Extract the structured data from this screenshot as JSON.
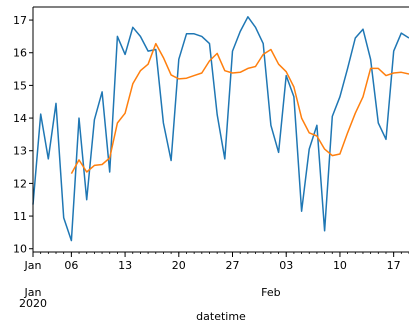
{
  "chart_data": {
    "type": "line",
    "title": "",
    "xlabel": "datetime",
    "ylabel": "",
    "xlim": [
      "2020-01-01",
      "2020-02-19"
    ],
    "ylim": [
      9.9,
      17.4
    ],
    "grid": false,
    "yticks": [
      10,
      11,
      12,
      13,
      14,
      15,
      16,
      17
    ],
    "xticks": [
      {
        "date": "2020-01-01",
        "label": "Jan"
      },
      {
        "date": "2020-01-06",
        "label": "06"
      },
      {
        "date": "2020-01-13",
        "label": "13"
      },
      {
        "date": "2020-01-20",
        "label": "20"
      },
      {
        "date": "2020-01-27",
        "label": "27"
      },
      {
        "date": "2020-02-03",
        "label": "03"
      },
      {
        "date": "2020-02-10",
        "label": "10"
      },
      {
        "date": "2020-02-17",
        "label": "17"
      }
    ],
    "major_labels": [
      {
        "date": "2020-01-01",
        "lines": [
          "Jan",
          "2020"
        ]
      },
      {
        "date": "2020-02-01",
        "lines": [
          "Feb"
        ]
      }
    ],
    "series": [
      {
        "color": "#1f77b4",
        "points": [
          [
            "2020-01-01",
            11.35
          ],
          [
            "2020-01-02",
            14.12
          ],
          [
            "2020-01-03",
            12.75
          ],
          [
            "2020-01-04",
            14.45
          ],
          [
            "2020-01-05",
            10.95
          ],
          [
            "2020-01-06",
            10.25
          ],
          [
            "2020-01-07",
            14.0
          ],
          [
            "2020-01-08",
            11.5
          ],
          [
            "2020-01-09",
            13.95
          ],
          [
            "2020-01-10",
            14.8
          ],
          [
            "2020-01-11",
            12.35
          ],
          [
            "2020-01-12",
            16.5
          ],
          [
            "2020-01-13",
            15.95
          ],
          [
            "2020-01-14",
            16.78
          ],
          [
            "2020-01-15",
            16.5
          ],
          [
            "2020-01-16",
            16.05
          ],
          [
            "2020-01-17",
            16.1
          ],
          [
            "2020-01-18",
            13.85
          ],
          [
            "2020-01-19",
            12.7
          ],
          [
            "2020-01-20",
            15.8
          ],
          [
            "2020-01-21",
            16.58
          ],
          [
            "2020-01-22",
            16.58
          ],
          [
            "2020-01-23",
            16.5
          ],
          [
            "2020-01-24",
            16.28
          ],
          [
            "2020-01-25",
            14.1
          ],
          [
            "2020-01-26",
            12.75
          ],
          [
            "2020-01-27",
            16.05
          ],
          [
            "2020-01-28",
            16.65
          ],
          [
            "2020-01-29",
            17.1
          ],
          [
            "2020-01-30",
            16.78
          ],
          [
            "2020-01-31",
            16.28
          ],
          [
            "2020-02-01",
            13.78
          ],
          [
            "2020-02-02",
            12.95
          ],
          [
            "2020-02-03",
            15.3
          ],
          [
            "2020-02-04",
            14.65
          ],
          [
            "2020-02-05",
            11.15
          ],
          [
            "2020-02-06",
            13.05
          ],
          [
            "2020-02-07",
            13.78
          ],
          [
            "2020-02-08",
            10.55
          ],
          [
            "2020-02-09",
            14.05
          ],
          [
            "2020-02-10",
            14.65
          ],
          [
            "2020-02-11",
            15.52
          ],
          [
            "2020-02-12",
            16.45
          ],
          [
            "2020-02-13",
            16.72
          ],
          [
            "2020-02-14",
            15.8
          ],
          [
            "2020-02-15",
            13.85
          ],
          [
            "2020-02-16",
            13.35
          ],
          [
            "2020-02-17",
            16.05
          ],
          [
            "2020-02-18",
            16.6
          ],
          [
            "2020-02-19",
            16.45
          ]
        ]
      },
      {
        "color": "#ff7f0e",
        "points": [
          [
            "2020-01-06",
            12.3
          ],
          [
            "2020-01-07",
            12.72
          ],
          [
            "2020-01-08",
            12.35
          ],
          [
            "2020-01-09",
            12.55
          ],
          [
            "2020-01-10",
            12.58
          ],
          [
            "2020-01-11",
            12.78
          ],
          [
            "2020-01-12",
            13.85
          ],
          [
            "2020-01-13",
            14.15
          ],
          [
            "2020-01-14",
            15.05
          ],
          [
            "2020-01-15",
            15.45
          ],
          [
            "2020-01-16",
            15.65
          ],
          [
            "2020-01-17",
            16.28
          ],
          [
            "2020-01-18",
            15.85
          ],
          [
            "2020-01-19",
            15.32
          ],
          [
            "2020-01-20",
            15.2
          ],
          [
            "2020-01-21",
            15.22
          ],
          [
            "2020-01-22",
            15.3
          ],
          [
            "2020-01-23",
            15.38
          ],
          [
            "2020-01-24",
            15.75
          ],
          [
            "2020-01-25",
            15.98
          ],
          [
            "2020-01-26",
            15.45
          ],
          [
            "2020-01-27",
            15.38
          ],
          [
            "2020-01-28",
            15.4
          ],
          [
            "2020-01-29",
            15.52
          ],
          [
            "2020-01-30",
            15.58
          ],
          [
            "2020-01-31",
            15.95
          ],
          [
            "2020-02-01",
            16.1
          ],
          [
            "2020-02-02",
            15.65
          ],
          [
            "2020-02-03",
            15.42
          ],
          [
            "2020-02-04",
            14.95
          ],
          [
            "2020-02-05",
            14.0
          ],
          [
            "2020-02-06",
            13.55
          ],
          [
            "2020-02-07",
            13.45
          ],
          [
            "2020-02-08",
            13.05
          ],
          [
            "2020-02-09",
            12.85
          ],
          [
            "2020-02-10",
            12.9
          ],
          [
            "2020-02-11",
            13.55
          ],
          [
            "2020-02-12",
            14.15
          ],
          [
            "2020-02-13",
            14.65
          ],
          [
            "2020-02-14",
            15.52
          ],
          [
            "2020-02-15",
            15.52
          ],
          [
            "2020-02-16",
            15.3
          ],
          [
            "2020-02-17",
            15.38
          ],
          [
            "2020-02-18",
            15.4
          ],
          [
            "2020-02-19",
            15.35
          ]
        ]
      }
    ]
  }
}
